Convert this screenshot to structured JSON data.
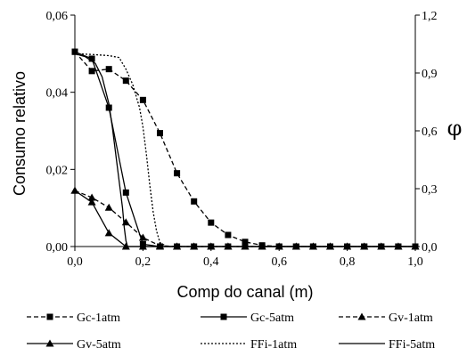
{
  "chart_data": {
    "type": "line",
    "title": "",
    "xlabel": "Comp do canal (m)",
    "ylabel": "Consumo relativo",
    "y2label": "φ",
    "xlim": [
      0,
      1
    ],
    "ylim": [
      0,
      0.06
    ],
    "y2lim": [
      0,
      1.2
    ],
    "x_ticks": [
      "0,0",
      "0,2",
      "0,4",
      "0,6",
      "0,8",
      "1,0"
    ],
    "y_ticks": [
      "0,00",
      "0,02",
      "0,04",
      "0,06"
    ],
    "y2_ticks": [
      "0,0",
      "0,3",
      "0,6",
      "0,9",
      "1,2"
    ],
    "grid": false,
    "legend_position": "bottom",
    "series": [
      {
        "name": "Gc-1atm",
        "axis": "left",
        "dash": "dashed",
        "marker": "square",
        "points": [
          [
            0,
            0.0505
          ],
          [
            0.05,
            0.0455
          ],
          [
            0.1,
            0.046
          ],
          [
            0.15,
            0.043
          ],
          [
            0.2,
            0.038
          ],
          [
            0.25,
            0.0294
          ],
          [
            0.3,
            0.019
          ],
          [
            0.35,
            0.0117
          ],
          [
            0.4,
            0.0062
          ],
          [
            0.45,
            0.003
          ],
          [
            0.5,
            0.0012
          ],
          [
            0.55,
            0.0003
          ],
          [
            0.6,
            0
          ],
          [
            0.65,
            0
          ],
          [
            0.7,
            0
          ],
          [
            0.75,
            0
          ],
          [
            0.8,
            0
          ],
          [
            0.85,
            0
          ],
          [
            0.9,
            0
          ],
          [
            0.95,
            0
          ],
          [
            1.0,
            0
          ]
        ]
      },
      {
        "name": "Gc-5atm",
        "axis": "left",
        "dash": "solid",
        "marker": "square",
        "points": [
          [
            0,
            0.0505
          ],
          [
            0.05,
            0.0487
          ],
          [
            0.1,
            0.036
          ],
          [
            0.15,
            0.014
          ],
          [
            0.2,
            0.0006
          ],
          [
            0.25,
            0
          ],
          [
            0.3,
            0
          ],
          [
            0.35,
            0
          ],
          [
            0.4,
            0
          ],
          [
            0.45,
            0
          ],
          [
            0.5,
            0
          ],
          [
            0.55,
            0
          ],
          [
            0.6,
            0
          ],
          [
            0.65,
            0
          ],
          [
            0.7,
            0
          ],
          [
            0.75,
            0
          ],
          [
            0.8,
            0
          ],
          [
            0.85,
            0
          ],
          [
            0.9,
            0
          ],
          [
            0.95,
            0
          ],
          [
            1.0,
            0
          ]
        ]
      },
      {
        "name": "Gv-1atm",
        "axis": "left",
        "dash": "dashed",
        "marker": "triangle",
        "points": [
          [
            0,
            0.0145
          ],
          [
            0.05,
            0.0127
          ],
          [
            0.1,
            0.0101
          ],
          [
            0.15,
            0.0063
          ],
          [
            0.2,
            0.0023
          ],
          [
            0.25,
            0.0002
          ],
          [
            0.3,
            0
          ],
          [
            0.35,
            0
          ],
          [
            0.4,
            0
          ],
          [
            0.45,
            0
          ],
          [
            0.5,
            0
          ],
          [
            0.55,
            0
          ],
          [
            0.6,
            0
          ],
          [
            0.65,
            0
          ],
          [
            0.7,
            0
          ],
          [
            0.75,
            0
          ],
          [
            0.8,
            0
          ],
          [
            0.85,
            0
          ],
          [
            0.9,
            0
          ],
          [
            0.95,
            0
          ],
          [
            1.0,
            0
          ]
        ]
      },
      {
        "name": "Gv-5atm",
        "axis": "left",
        "dash": "solid",
        "marker": "triangle",
        "points": [
          [
            0,
            0.0145
          ],
          [
            0.05,
            0.0115
          ],
          [
            0.1,
            0.0035
          ],
          [
            0.15,
            0
          ],
          [
            0.2,
            0
          ],
          [
            0.25,
            0
          ],
          [
            0.3,
            0
          ],
          [
            0.35,
            0
          ],
          [
            0.4,
            0
          ],
          [
            0.45,
            0
          ],
          [
            0.5,
            0
          ],
          [
            0.55,
            0
          ],
          [
            0.6,
            0
          ],
          [
            0.65,
            0
          ],
          [
            0.7,
            0
          ],
          [
            0.75,
            0
          ],
          [
            0.8,
            0
          ],
          [
            0.85,
            0
          ],
          [
            0.9,
            0
          ],
          [
            0.95,
            0
          ],
          [
            1.0,
            0
          ]
        ]
      },
      {
        "name": "FFi-1atm",
        "axis": "right",
        "dash": "dotted",
        "marker": "none",
        "points": [
          [
            0,
            1.0
          ],
          [
            0.05,
            0.996
          ],
          [
            0.1,
            0.99
          ],
          [
            0.13,
            0.98
          ],
          [
            0.15,
            0.92
          ],
          [
            0.17,
            0.84
          ],
          [
            0.19,
            0.72
          ],
          [
            0.2,
            0.62
          ],
          [
            0.21,
            0.48
          ],
          [
            0.22,
            0.32
          ],
          [
            0.23,
            0.18
          ],
          [
            0.24,
            0.08
          ],
          [
            0.25,
            0.02
          ],
          [
            0.27,
            0
          ],
          [
            0.3,
            0
          ],
          [
            0.5,
            0
          ],
          [
            0.7,
            0
          ],
          [
            1.0,
            0
          ]
        ]
      },
      {
        "name": "FFi-5atm",
        "axis": "right",
        "dash": "solid",
        "marker": "none",
        "points": [
          [
            0,
            1.0
          ],
          [
            0.03,
            0.985
          ],
          [
            0.06,
            0.95
          ],
          [
            0.08,
            0.88
          ],
          [
            0.1,
            0.74
          ],
          [
            0.11,
            0.62
          ],
          [
            0.12,
            0.48
          ],
          [
            0.13,
            0.34
          ],
          [
            0.14,
            0.2
          ],
          [
            0.145,
            0.1
          ],
          [
            0.15,
            0.03
          ],
          [
            0.155,
            0
          ],
          [
            0.2,
            0
          ],
          [
            0.5,
            0
          ],
          [
            1.0,
            0
          ]
        ]
      }
    ]
  }
}
